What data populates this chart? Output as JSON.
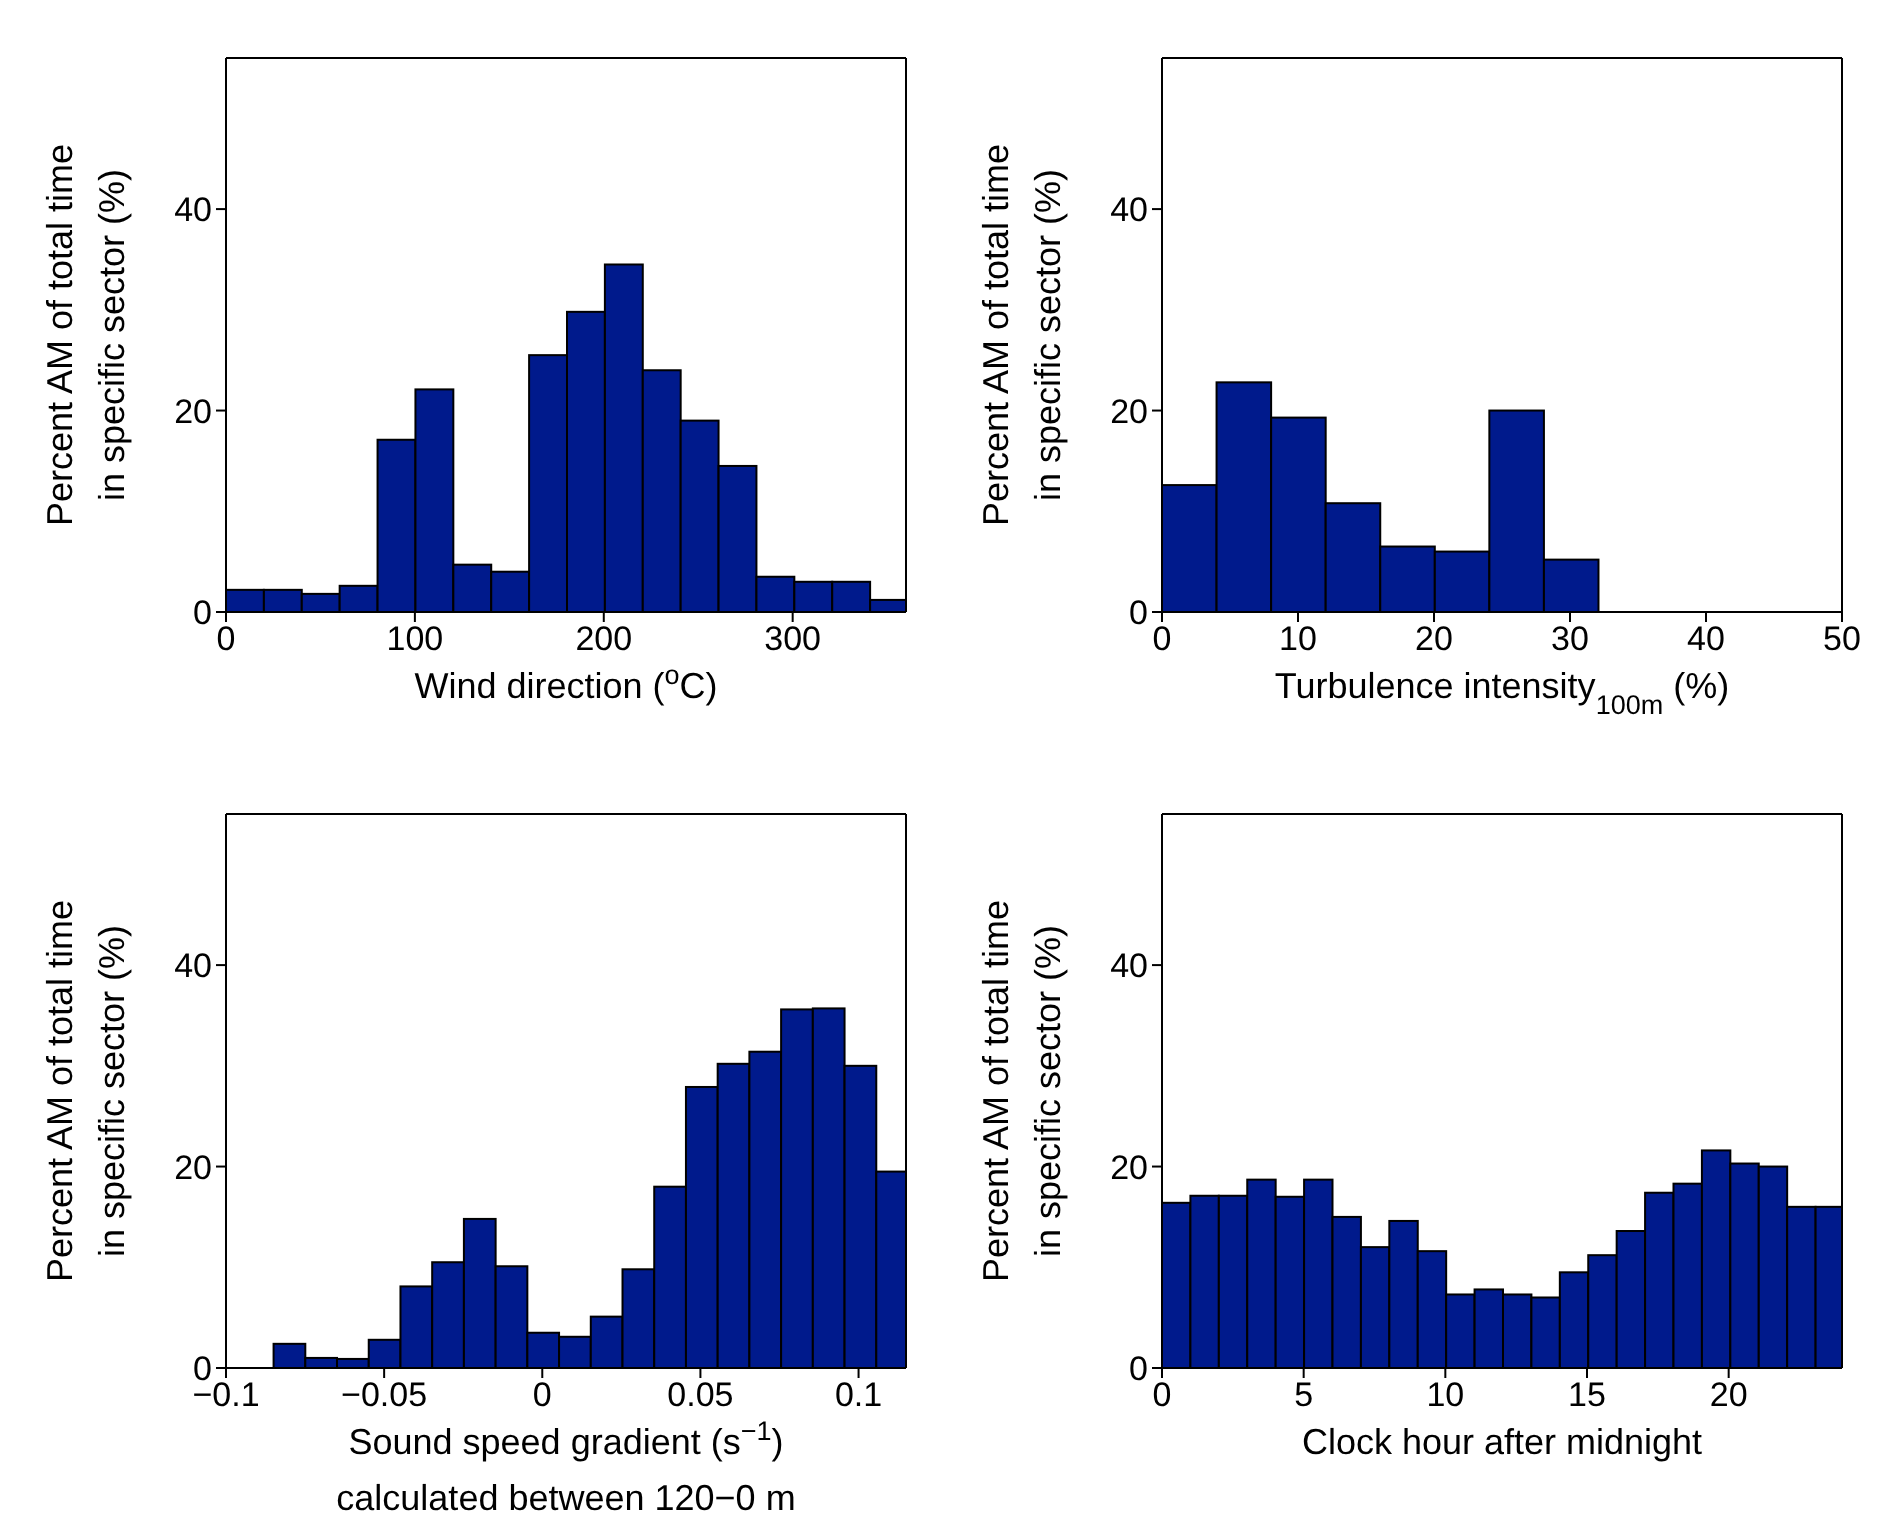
{
  "chart_data": [
    {
      "type": "histogram",
      "xlabel": "Wind direction ($^{o}$C)",
      "ylabel": "Percent AM of total time\nin specific sector (%)",
      "bins": [
        0,
        20,
        40,
        60,
        80,
        100,
        120,
        140,
        160,
        180,
        200,
        220,
        240,
        260,
        280,
        300,
        320,
        340,
        360
      ],
      "values": [
        2.2,
        2.2,
        1.8,
        2.6,
        17.1,
        22.1,
        4.7,
        4,
        25.5,
        29.8,
        34.5,
        24,
        19,
        14.5,
        3.5,
        3,
        3,
        1.2
      ],
      "color": "#001a8c",
      "xlim": [
        0,
        360
      ],
      "xticks": [
        0,
        100,
        200,
        300
      ],
      "ylim": [
        0,
        55
      ],
      "yticks": [
        0,
        20,
        40
      ]
    },
    {
      "type": "histogram",
      "xlabel": "Turbulence intensity$_{100m}$ (%)",
      "ylabel": "Percent AM of total time\nin specific sector (%)",
      "bins": [
        0,
        4,
        8,
        12,
        16,
        20,
        24,
        28,
        32
      ],
      "values": [
        12.6,
        22.8,
        19.3,
        10.8,
        6.5,
        6,
        20,
        5.2
      ],
      "color": "#001a8c",
      "xlim": [
        0,
        50
      ],
      "xticks": [
        0,
        10,
        20,
        30,
        40,
        50
      ],
      "ylim": [
        0,
        55
      ],
      "yticks": [
        0,
        20,
        40
      ]
    },
    {
      "type": "histogram",
      "xlabel": "Sound speed gradient (s$^{−1}$)\ncalculated between 120−0 m",
      "ylabel": "Percent AM of total time\nin specific sector (%)",
      "bins": [
        -0.085,
        -0.075,
        -0.065,
        -0.055,
        -0.045,
        -0.035,
        -0.025,
        -0.015,
        -0.005,
        0.005,
        0.015,
        0.025,
        0.035,
        0.045,
        0.055,
        0.065,
        0.075,
        0.085,
        0.095,
        0.105,
        0.115
      ],
      "values": [
        2.4,
        1,
        0.9,
        2.8,
        8.1,
        10.5,
        14.8,
        10.1,
        3.5,
        3.1,
        5.1,
        9.8,
        18,
        27.9,
        30.2,
        31.4,
        35.6,
        35.7,
        30,
        19.5
      ],
      "color": "#001a8c",
      "xlim": [
        -0.1,
        0.115
      ],
      "xticks": [
        {
          "value": -0.1,
          "label": "−0.1"
        },
        {
          "value": -0.05,
          "label": "−0.05"
        },
        0,
        0.05,
        0.1
      ],
      "ylim": [
        0,
        55
      ],
      "yticks": [
        0,
        20,
        40
      ]
    },
    {
      "type": "histogram",
      "xlabel": "Clock hour after midnight",
      "ylabel": "Percent AM of total time\nin specific sector (%)",
      "bins": [
        0,
        1,
        2,
        3,
        4,
        5,
        6,
        7,
        8,
        9,
        10,
        11,
        12,
        13,
        14,
        15,
        16,
        17,
        18,
        19,
        20,
        21,
        22,
        23,
        24
      ],
      "values": [
        16.4,
        17.1,
        17.1,
        18.7,
        17,
        18.7,
        15,
        12,
        14.6,
        11.6,
        7.3,
        7.8,
        7.3,
        7,
        9.5,
        11.2,
        13.6,
        17.4,
        18.3,
        21.6,
        20.3,
        20,
        16,
        16
      ],
      "color": "#001a8c",
      "xlim": [
        0,
        24
      ],
      "xticks": [
        0,
        5,
        10,
        15,
        20
      ],
      "ylim": [
        0,
        55
      ],
      "yticks": [
        0,
        20,
        40
      ]
    }
  ]
}
